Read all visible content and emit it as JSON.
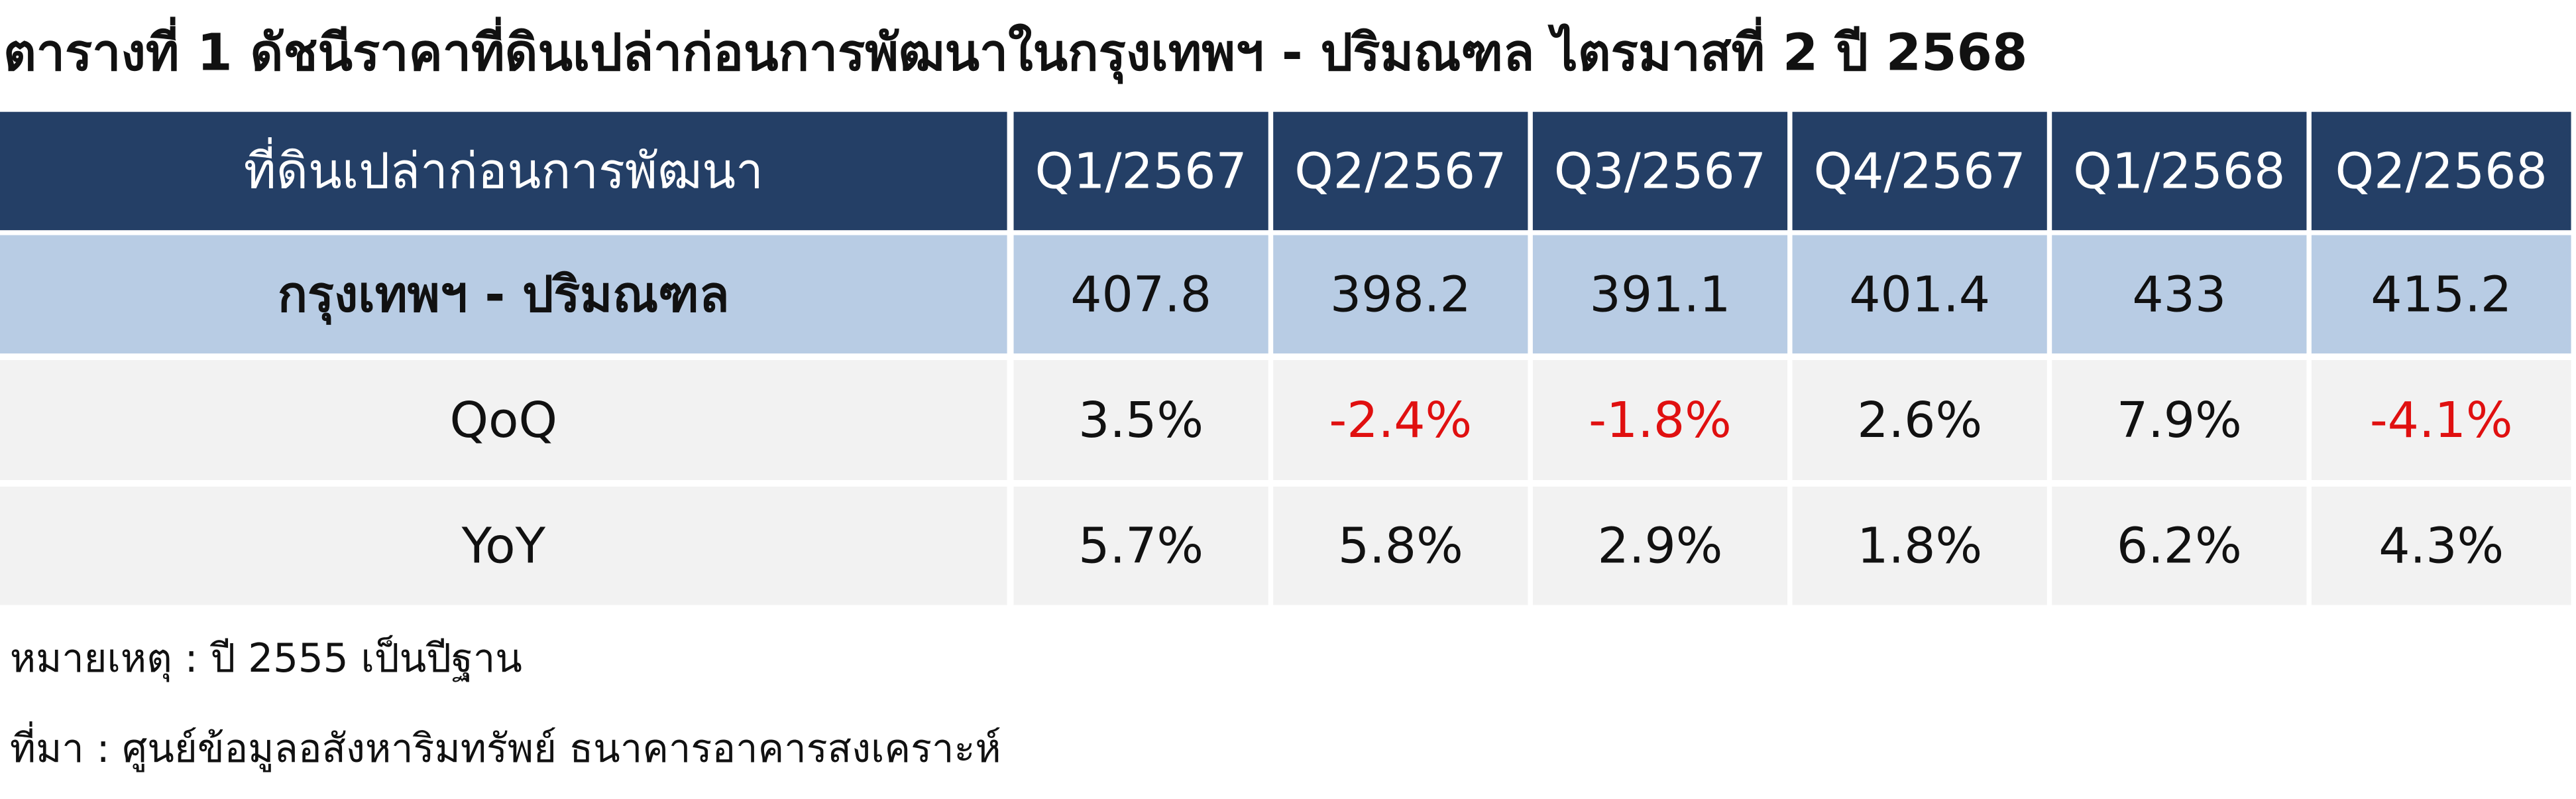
{
  "title": "ตารางที่ 1 ดัชนีราคาที่ดินเปล่าก่อนการพัฒนาในกรุงเทพฯ - ปริมณฑล ไตรมาสที่ 2 ปี 2568",
  "table": {
    "header": [
      "ที่ดินเปล่าก่อนการพัฒนา",
      "Q1/2567",
      "Q2/2567",
      "Q3/2567",
      "Q4/2567",
      "Q1/2568",
      "Q2/2568"
    ],
    "rows": [
      [
        "กรุงเทพฯ - ปริมณฑล",
        "407.8",
        "398.2",
        "391.1",
        "401.4",
        "433",
        "415.2"
      ],
      [
        "QoQ",
        "3.5%",
        "-2.4%",
        "-1.8%",
        "2.6%",
        "7.9%",
        "-4.1%"
      ],
      [
        "YoY",
        "5.7%",
        "5.8%",
        "2.9%",
        "1.8%",
        "6.2%",
        "4.3%"
      ]
    ]
  },
  "notes": [
    "หมายเหตุ : ปี 2555 เป็นปีฐาน",
    "ที่มา : ศูนย์ข้อมูลอสังหาริมทรัพย์ ธนาคารอาคารสงเคราะห์"
  ]
}
